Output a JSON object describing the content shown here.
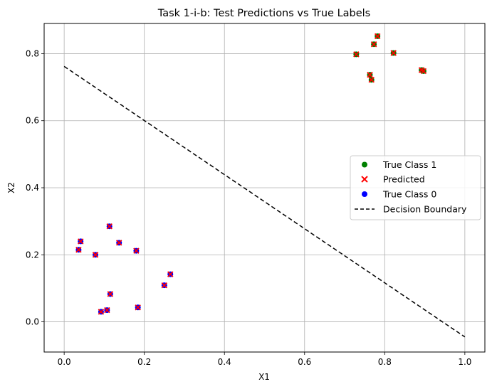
{
  "chart_data": {
    "type": "scatter",
    "title": "Task 1-i-b: Test Predictions vs True Labels",
    "xlabel": "X1",
    "ylabel": "X2",
    "xlim": [
      -0.05,
      1.05
    ],
    "ylim": [
      -0.09,
      0.89
    ],
    "grid": true,
    "legend_position": "center-right",
    "x_ticks": [
      "0.0",
      "0.2",
      "0.4",
      "0.6",
      "0.8",
      "1.0"
    ],
    "y_ticks": [
      "0.0",
      "0.2",
      "0.4",
      "0.6",
      "0.8"
    ],
    "colors": {
      "class1": "#008000",
      "class0": "#0000ff",
      "predicted": "#ff0000",
      "boundary": "#000000",
      "grid": "#b0b0b0"
    },
    "series": [
      {
        "name": "True Class 1",
        "marker": "circle",
        "points": [
          [
            0.729,
            0.798
          ],
          [
            0.773,
            0.828
          ],
          [
            0.782,
            0.852
          ],
          [
            0.822,
            0.802
          ],
          [
            0.763,
            0.737
          ],
          [
            0.767,
            0.722
          ],
          [
            0.892,
            0.751
          ],
          [
            0.897,
            0.748
          ]
        ]
      },
      {
        "name": "Predicted",
        "marker": "x",
        "points": [
          [
            0.729,
            0.798
          ],
          [
            0.773,
            0.828
          ],
          [
            0.782,
            0.852
          ],
          [
            0.822,
            0.802
          ],
          [
            0.763,
            0.737
          ],
          [
            0.767,
            0.722
          ],
          [
            0.892,
            0.751
          ],
          [
            0.897,
            0.748
          ],
          [
            0.041,
            0.24
          ],
          [
            0.036,
            0.215
          ],
          [
            0.078,
            0.2
          ],
          [
            0.113,
            0.285
          ],
          [
            0.137,
            0.236
          ],
          [
            0.18,
            0.212
          ],
          [
            0.265,
            0.142
          ],
          [
            0.25,
            0.109
          ],
          [
            0.115,
            0.083
          ],
          [
            0.107,
            0.035
          ],
          [
            0.092,
            0.03
          ],
          [
            0.184,
            0.043
          ]
        ]
      },
      {
        "name": "True Class 0",
        "marker": "circle",
        "points": [
          [
            0.041,
            0.24
          ],
          [
            0.036,
            0.215
          ],
          [
            0.078,
            0.2
          ],
          [
            0.113,
            0.285
          ],
          [
            0.137,
            0.236
          ],
          [
            0.18,
            0.212
          ],
          [
            0.265,
            0.142
          ],
          [
            0.25,
            0.109
          ],
          [
            0.115,
            0.083
          ],
          [
            0.107,
            0.035
          ],
          [
            0.092,
            0.03
          ],
          [
            0.184,
            0.043
          ]
        ]
      },
      {
        "name": "Decision Boundary",
        "marker": "dashed-line",
        "points": [
          [
            0.0,
            0.762
          ],
          [
            1.0,
            -0.045
          ]
        ]
      }
    ]
  }
}
